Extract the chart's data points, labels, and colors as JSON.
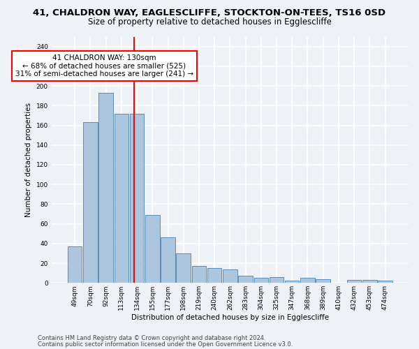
{
  "title_line1": "41, CHALDRON WAY, EAGLESCLIFFE, STOCKTON-ON-TEES, TS16 0SD",
  "title_line2": "Size of property relative to detached houses in Egglescliffe",
  "xlabel": "Distribution of detached houses by size in Egglescliffe",
  "ylabel": "Number of detached properties",
  "categories": [
    "49sqm",
    "70sqm",
    "92sqm",
    "113sqm",
    "134sqm",
    "155sqm",
    "177sqm",
    "198sqm",
    "219sqm",
    "240sqm",
    "262sqm",
    "283sqm",
    "304sqm",
    "325sqm",
    "347sqm",
    "368sqm",
    "389sqm",
    "410sqm",
    "432sqm",
    "453sqm",
    "474sqm"
  ],
  "values": [
    37,
    163,
    193,
    172,
    172,
    69,
    46,
    30,
    17,
    15,
    14,
    7,
    5,
    6,
    2,
    5,
    4,
    0,
    3,
    3,
    2
  ],
  "bar_color": "#adc6e0",
  "bar_edge_color": "#5b8db8",
  "vline_x": 3.82,
  "vline_color": "red",
  "annotation_text": "41 CHALDRON WAY: 130sqm\n← 68% of detached houses are smaller (525)\n31% of semi-detached houses are larger (241) →",
  "annotation_box_color": "white",
  "annotation_box_edge_color": "red",
  "ylim": [
    0,
    250
  ],
  "yticks": [
    0,
    20,
    40,
    60,
    80,
    100,
    120,
    140,
    160,
    180,
    200,
    220,
    240
  ],
  "footer_line1": "Contains HM Land Registry data © Crown copyright and database right 2024.",
  "footer_line2": "Contains public sector information licensed under the Open Government Licence v3.0.",
  "background_color": "#eef2f7",
  "grid_color": "white",
  "title_fontsize": 9.5,
  "subtitle_fontsize": 8.5,
  "axis_label_fontsize": 7.5,
  "tick_fontsize": 6.5,
  "annotation_fontsize": 7.5,
  "footer_fontsize": 6.0
}
